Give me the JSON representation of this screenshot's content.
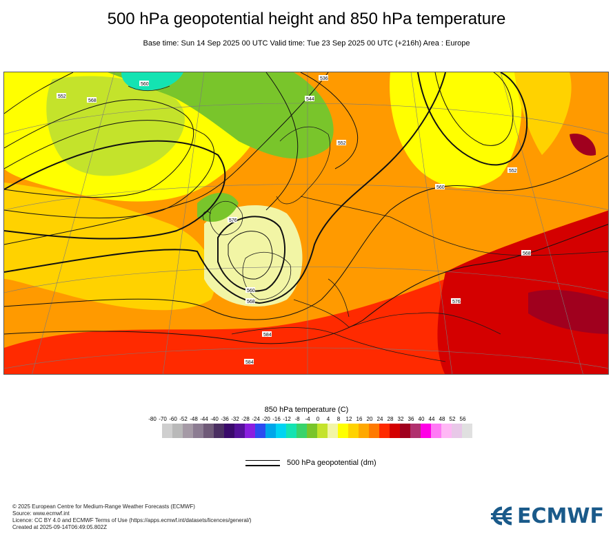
{
  "header": {
    "title": "500 hPa geopotential height and 850 hPa temperature",
    "subtitle": "Base time: Sun 14 Sep 2025 00 UTC Valid time: Tue 23 Sep 2025 00 UTC (+216h) Area : Europe"
  },
  "map": {
    "contour_labels": [
      "552",
      "576",
      "584",
      "568",
      "560",
      "544",
      "536",
      "552",
      "560",
      "568",
      "576",
      "584",
      "552",
      "568",
      "560"
    ]
  },
  "legend": {
    "title": "850 hPa temperature (C)",
    "ticks": [
      "-80",
      "-70",
      "-60",
      "-52",
      "-48",
      "-44",
      "-40",
      "-36",
      "-32",
      "-28",
      "-24",
      "-20",
      "-16",
      "-12",
      "-8",
      "-4",
      "0",
      "4",
      "8",
      "12",
      "16",
      "20",
      "24",
      "28",
      "32",
      "36",
      "40",
      "44",
      "48",
      "52",
      "56"
    ],
    "colors": [
      "#e3e3e3",
      "#cfcfcf",
      "#b9b9b9",
      "#a59aa6",
      "#8c7c92",
      "#6f5a78",
      "#4b2f62",
      "#3a0a6b",
      "#55119a",
      "#8a1ee0",
      "#2c4cf0",
      "#00a6ea",
      "#00d4f2",
      "#14e3b2",
      "#39d36b",
      "#79c52b",
      "#c4e32b",
      "#f2f5a5",
      "#ffff00",
      "#ffd200",
      "#ffa800",
      "#ff7a00",
      "#ff2a00",
      "#d40000",
      "#a0001e",
      "#b0306e",
      "#ff00e6",
      "#ff7af5",
      "#ffb8f5",
      "#e8c8e8",
      "#e0e0e0"
    ],
    "line_label": "500 hPa geopotential (dm)"
  },
  "footer": {
    "lines": [
      "© 2025 European Centre for Medium-Range Weather Forecasts (ECMWF)",
      "Source: www.ecmwf.int",
      "Licence: CC BY 4.0 and ECMWF Terms of Use (https://apps.ecmwf.int/datasets/licences/general/)",
      "Created at 2025-09-14T06:49:05.802Z"
    ]
  },
  "logo": {
    "text": "ECMWF",
    "color": "#1a5a8a"
  }
}
